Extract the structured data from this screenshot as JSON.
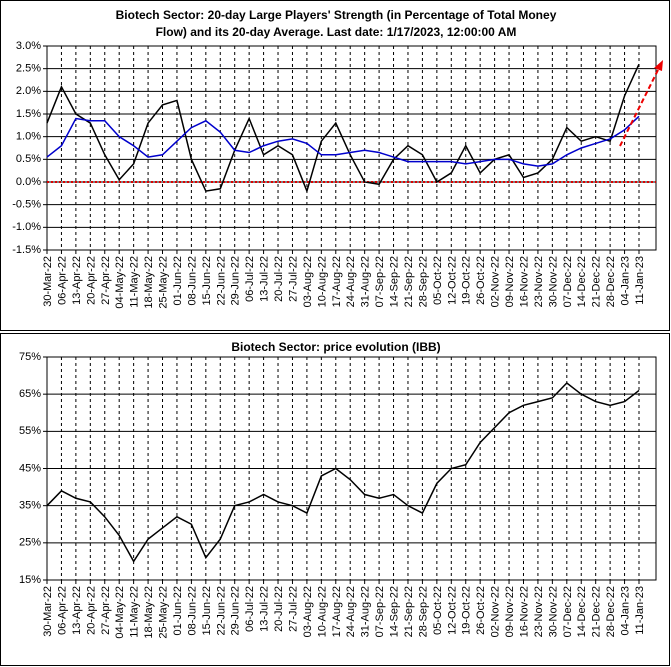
{
  "chart_data": [
    {
      "type": "line",
      "title": [
        "Biotech Sector: 20-day Large Players' Strength (in Percentage of Total Money",
        "Flow) and its 20-day Average. Last date: 1/17/2023, 12:00:00 AM"
      ],
      "categories": [
        "30-Mar-22",
        "06-Apr-22",
        "13-Apr-22",
        "20-Apr-22",
        "27-Apr-22",
        "04-May-22",
        "11-May-22",
        "18-May-22",
        "25-May-22",
        "01-Jun-22",
        "08-Jun-22",
        "15-Jun-22",
        "22-Jun-22",
        "29-Jun-22",
        "06-Jul-22",
        "13-Jul-22",
        "20-Jul-22",
        "27-Jul-22",
        "03-Aug-22",
        "10-Aug-22",
        "17-Aug-22",
        "24-Aug-22",
        "31-Aug-22",
        "07-Sep-22",
        "14-Sep-22",
        "21-Sep-22",
        "28-Sep-22",
        "05-Oct-22",
        "12-Oct-22",
        "19-Oct-22",
        "26-Oct-22",
        "02-Nov-22",
        "09-Nov-22",
        "16-Nov-22",
        "23-Nov-22",
        "30-Nov-22",
        "07-Dec-22",
        "14-Dec-22",
        "21-Dec-22",
        "28-Dec-22",
        "04-Jan-23",
        "11-Jan-23"
      ],
      "series": [
        {
          "color": "#000000",
          "values": [
            1.3,
            2.1,
            1.5,
            1.3,
            0.6,
            0.05,
            0.4,
            1.3,
            1.7,
            1.8,
            0.5,
            -0.2,
            -0.15,
            0.7,
            1.4,
            0.6,
            0.8,
            0.6,
            -0.2,
            0.9,
            1.3,
            0.6,
            0.0,
            -0.05,
            0.5,
            0.8,
            0.6,
            0.0,
            0.2,
            0.8,
            0.2,
            0.5,
            0.6,
            0.1,
            0.2,
            0.5,
            1.2,
            0.9,
            1.0,
            0.9,
            1.9,
            2.6
          ]
        },
        {
          "color": "#0000cc",
          "values": [
            0.55,
            0.8,
            1.4,
            1.35,
            1.35,
            1.0,
            0.8,
            0.55,
            0.6,
            0.9,
            1.2,
            1.35,
            1.1,
            0.7,
            0.65,
            0.8,
            0.9,
            0.95,
            0.85,
            0.6,
            0.6,
            0.65,
            0.7,
            0.65,
            0.55,
            0.45,
            0.45,
            0.45,
            0.45,
            0.4,
            0.45,
            0.5,
            0.5,
            0.4,
            0.35,
            0.4,
            0.6,
            0.75,
            0.85,
            0.95,
            1.15,
            1.45
          ]
        }
      ],
      "ylim": [
        -1.5,
        3.0
      ],
      "yticks": [
        {
          "value": -1.5,
          "label": "-1.5%"
        },
        {
          "value": -1.0,
          "label": "-1.0%"
        },
        {
          "value": -0.5,
          "label": "-0.5%"
        },
        {
          "value": 0,
          "label": "0.0%"
        },
        {
          "value": 0.5,
          "label": "0.5%"
        },
        {
          "value": 1.0,
          "label": "1.0%"
        },
        {
          "value": 1.5,
          "label": "1.5%"
        },
        {
          "value": 2.0,
          "label": "2.0%"
        },
        {
          "value": 2.5,
          "label": "2.5%"
        },
        {
          "value": 3.0,
          "label": "3.0%"
        }
      ],
      "grid": true
    },
    {
      "type": "line",
      "title": [
        "Biotech Sector: price evolution (IBB)"
      ],
      "categories": [
        "30-Mar-22",
        "06-Apr-22",
        "13-Apr-22",
        "20-Apr-22",
        "27-Apr-22",
        "04-May-22",
        "11-May-22",
        "18-May-22",
        "25-May-22",
        "01-Jun-22",
        "08-Jun-22",
        "15-Jun-22",
        "22-Jun-22",
        "29-Jun-22",
        "06-Jul-22",
        "13-Jul-22",
        "20-Jul-22",
        "27-Jul-22",
        "03-Aug-22",
        "10-Aug-22",
        "17-Aug-22",
        "24-Aug-22",
        "31-Aug-22",
        "07-Sep-22",
        "14-Sep-22",
        "21-Sep-22",
        "28-Sep-22",
        "05-Oct-22",
        "12-Oct-22",
        "19-Oct-22",
        "26-Oct-22",
        "02-Nov-22",
        "09-Nov-22",
        "16-Nov-22",
        "23-Nov-22",
        "30-Nov-22",
        "07-Dec-22",
        "14-Dec-22",
        "21-Dec-22",
        "28-Dec-22",
        "04-Jan-23",
        "11-Jan-23"
      ],
      "series": [
        {
          "color": "#000000",
          "values": [
            35,
            39,
            37,
            36,
            32,
            27,
            20,
            26,
            29,
            32,
            30,
            21,
            26,
            35,
            36,
            38,
            36,
            35,
            33,
            43,
            45,
            42,
            38,
            37,
            38,
            35,
            33,
            41,
            45,
            46,
            52,
            56,
            60,
            62,
            63,
            64,
            68,
            65,
            63,
            62,
            63,
            66
          ]
        }
      ],
      "ylim": [
        15,
        75
      ],
      "yticks": [
        {
          "value": 15,
          "label": "15%"
        },
        {
          "value": 25,
          "label": "25%"
        },
        {
          "value": 35,
          "label": "35%"
        },
        {
          "value": 45,
          "label": "45%"
        },
        {
          "value": 55,
          "label": "55%"
        },
        {
          "value": 65,
          "label": "65%"
        },
        {
          "value": 75,
          "label": "75%"
        }
      ],
      "grid": true
    }
  ]
}
